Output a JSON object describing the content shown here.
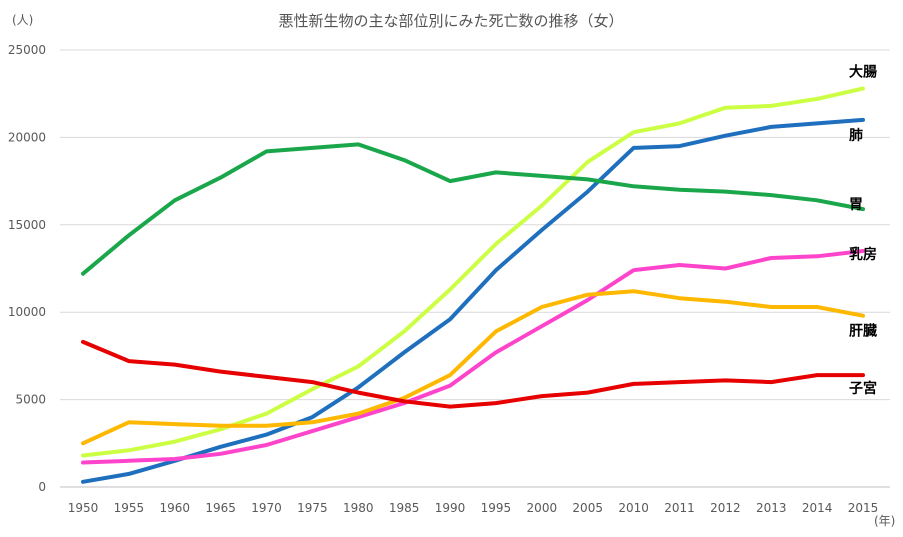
{
  "chart_data": {
    "type": "line",
    "title": "悪性新生物の主な部位別にみた死亡数の推移（女）",
    "ylabel": "(人)",
    "xlabel": "(年)",
    "ylim": [
      0,
      25000
    ],
    "yticks": [
      0,
      5000,
      10000,
      15000,
      20000,
      25000
    ],
    "grid": true,
    "legend": "inline-right",
    "categories": [
      "1950",
      "1955",
      "1960",
      "1965",
      "1970",
      "1975",
      "1980",
      "1985",
      "1990",
      "1995",
      "2000",
      "2005",
      "2010",
      "2011",
      "2012",
      "2013",
      "2014",
      "2015"
    ],
    "series": [
      {
        "name": "大腸",
        "color": "#ccff44",
        "values": [
          1800,
          2100,
          2600,
          3300,
          4200,
          5600,
          6900,
          8900,
          11300,
          13900,
          16100,
          18600,
          20300,
          20800,
          21700,
          21800,
          22200,
          22800
        ]
      },
      {
        "name": "肺",
        "color": "#1f6fbf",
        "values": [
          300,
          750,
          1500,
          2300,
          3000,
          4000,
          5700,
          7700,
          9600,
          12400,
          14700,
          16900,
          19400,
          19500,
          20100,
          20600,
          20800,
          21000
        ]
      },
      {
        "name": "胃",
        "color": "#1aa64a",
        "values": [
          12200,
          14400,
          16400,
          17700,
          19200,
          19400,
          19600,
          18700,
          17500,
          18000,
          17800,
          17600,
          17200,
          17000,
          16900,
          16700,
          16400,
          15900
        ]
      },
      {
        "name": "乳房",
        "color": "#ff44cc",
        "values": [
          1400,
          1500,
          1600,
          1900,
          2400,
          3200,
          4000,
          4800,
          5800,
          7700,
          9200,
          10700,
          12400,
          12700,
          12500,
          13100,
          13200,
          13500
        ]
      },
      {
        "name": "肝臓",
        "color": "#ffb800",
        "values": [
          2500,
          3700,
          3600,
          3500,
          3500,
          3700,
          4200,
          5100,
          6400,
          8900,
          10300,
          11000,
          11200,
          10800,
          10600,
          10300,
          10300,
          9800
        ]
      },
      {
        "name": "子宮",
        "color": "#e60000",
        "values": [
          8300,
          7200,
          7000,
          6600,
          6300,
          6000,
          5400,
          4900,
          4600,
          4800,
          5200,
          5400,
          5900,
          6000,
          6100,
          6000,
          6400,
          6400
        ]
      }
    ]
  }
}
